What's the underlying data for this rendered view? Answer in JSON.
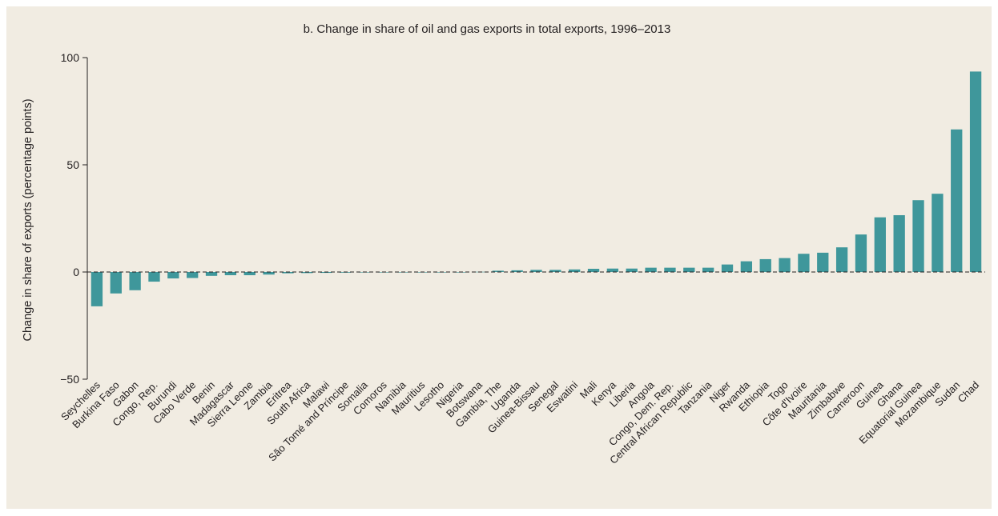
{
  "chart_data": {
    "type": "bar",
    "title": "b. Change in share of oil and gas exports in total exports, 1996–2013",
    "xlabel": "",
    "ylabel": "Change in share of exports (percentage points)",
    "ylim": [
      -50,
      100
    ],
    "yticks": [
      -50,
      0,
      50,
      100
    ],
    "ytick_labels": [
      "−50",
      "0",
      "50",
      "100"
    ],
    "grid": false,
    "zero_line": "dashed",
    "bar_color": "#3f979b",
    "categories": [
      "Seychelles",
      "Burkina Faso",
      "Gabon",
      "Congo, Rep.",
      "Burundi",
      "Cabo Verde",
      "Benin",
      "Madagascar",
      "Sierra Leone",
      "Zambia",
      "Eritrea",
      "South Africa",
      "Malawi",
      "São Tomé and Príncipe",
      "Somalia",
      "Comoros",
      "Namibia",
      "Mauritius",
      "Lesotho",
      "Nigeria",
      "Botswana",
      "Gambia, The",
      "Uganda",
      "Guinea-Bissau",
      "Senegal",
      "Eswatini",
      "Mali",
      "Kenya",
      "Liberia",
      "Angola",
      "Congo, Dem. Rep.",
      "Central African Republic",
      "Tanzania",
      "Niger",
      "Rwanda",
      "Ethiopia",
      "Togo",
      "Côte d'Ivoire",
      "Mauritania",
      "Zimbabwe",
      "Cameroon",
      "Guinea",
      "Ghana",
      "Equatorial Guinea",
      "Mozambique",
      "Sudan",
      "Chad"
    ],
    "values": [
      -16,
      -10,
      -8.5,
      -4.5,
      -3,
      -2.8,
      -1.8,
      -1.5,
      -1.5,
      -1.2,
      -0.6,
      -0.5,
      -0.4,
      -0.3,
      -0.2,
      -0.2,
      -0.1,
      -0.1,
      -0.1,
      -0.1,
      0.1,
      0.6,
      0.8,
      1.0,
      1.0,
      1.2,
      1.5,
      1.6,
      1.6,
      2.0,
      2.0,
      2.0,
      2.0,
      3.5,
      5.0,
      6.0,
      6.5,
      8.5,
      9.0,
      11.5,
      17.5,
      25.5,
      26.5,
      33.5,
      36.5,
      66.5,
      93.5
    ]
  }
}
